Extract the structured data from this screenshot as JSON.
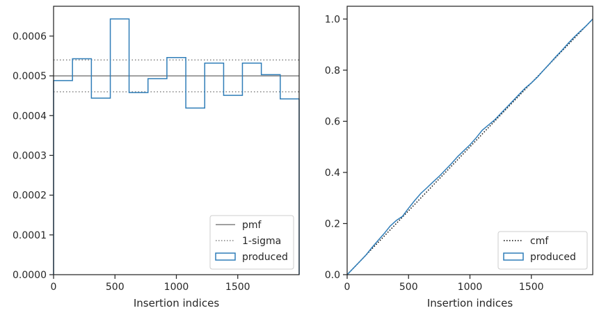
{
  "colors": {
    "produced": "#2f7db8",
    "pmf": "#808080",
    "sigma": "#808080",
    "cmf": "#000000",
    "axes": "#262626"
  },
  "chart_data": [
    {
      "type": "histogram",
      "xlabel": "Insertion indices",
      "ylabel": "",
      "xlim": [
        0,
        2000
      ],
      "ylim": [
        0,
        0.000675
      ],
      "xticks": [
        0,
        500,
        1000,
        1500
      ],
      "yticks": [
        0.0,
        0.0001,
        0.0002,
        0.0003,
        0.0004,
        0.0005,
        0.0006
      ],
      "ytick_labels": [
        "0.0000",
        "0.0001",
        "0.0002",
        "0.0003",
        "0.0004",
        "0.0005",
        "0.0006"
      ],
      "grid": false,
      "legend_position": "lower-right",
      "pmf": 0.0005,
      "sigma_band": [
        0.00046,
        0.00054
      ],
      "bin_edges": [
        0,
        154,
        308,
        462,
        615,
        769,
        923,
        1077,
        1231,
        1385,
        1538,
        1692,
        1846,
        2000
      ],
      "produced": [
        0.000488,
        0.000543,
        0.000444,
        0.000643,
        0.000458,
        0.000493,
        0.000546,
        0.000419,
        0.000532,
        0.000451,
        0.000532,
        0.000503,
        0.000442
      ],
      "legend": [
        {
          "label": "pmf",
          "style": "solid"
        },
        {
          "label": "1-sigma",
          "style": "dotted"
        },
        {
          "label": "produced",
          "style": "box"
        }
      ]
    },
    {
      "type": "line",
      "xlabel": "Insertion indices",
      "ylabel": "",
      "xlim": [
        0,
        2000
      ],
      "ylim": [
        0,
        1.05
      ],
      "xticks": [
        0,
        500,
        1000,
        1500
      ],
      "yticks": [
        0.0,
        0.2,
        0.4,
        0.6,
        0.8,
        1.0
      ],
      "ytick_labels": [
        "0.0",
        "0.2",
        "0.4",
        "0.6",
        "0.8",
        "1.0"
      ],
      "grid": false,
      "legend_position": "lower-right",
      "cmf": {
        "x": [
          0,
          2000
        ],
        "y": [
          0,
          1.0
        ]
      },
      "produced": {
        "x": [
          0,
          50,
          100,
          150,
          200,
          250,
          300,
          350,
          400,
          450,
          500,
          550,
          600,
          650,
          700,
          750,
          800,
          850,
          900,
          950,
          1000,
          1050,
          1100,
          1150,
          1200,
          1250,
          1300,
          1350,
          1400,
          1450,
          1500,
          1550,
          1600,
          1650,
          1700,
          1750,
          1800,
          1850,
          1900,
          1950,
          2000
        ],
        "y": [
          0.0,
          0.025,
          0.05,
          0.075,
          0.105,
          0.133,
          0.16,
          0.19,
          0.212,
          0.228,
          0.26,
          0.29,
          0.318,
          0.34,
          0.363,
          0.385,
          0.41,
          0.435,
          0.462,
          0.485,
          0.508,
          0.535,
          0.565,
          0.585,
          0.605,
          0.63,
          0.655,
          0.68,
          0.705,
          0.73,
          0.75,
          0.773,
          0.8,
          0.826,
          0.853,
          0.878,
          0.905,
          0.93,
          0.953,
          0.975,
          1.0
        ]
      },
      "legend": [
        {
          "label": "cmf",
          "style": "dotted"
        },
        {
          "label": "produced",
          "style": "box"
        }
      ]
    }
  ]
}
